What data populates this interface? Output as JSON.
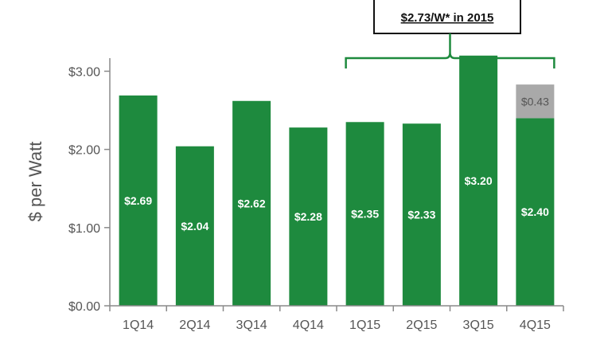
{
  "chart_data": {
    "type": "bar",
    "categories": [
      "1Q14",
      "2Q14",
      "3Q14",
      "4Q14",
      "1Q15",
      "2Q15",
      "3Q15",
      "4Q15"
    ],
    "series": [
      {
        "values": [
          2.69,
          2.04,
          2.62,
          2.28,
          2.35,
          2.33,
          3.2,
          2.4
        ],
        "color": "#1e8a3e"
      },
      {
        "values": [
          0,
          0,
          0,
          0,
          0,
          0,
          0,
          0.43
        ],
        "color": "#a9a9a9"
      }
    ],
    "data_labels": [
      "$2.69",
      "$2.04",
      "$2.62",
      "$2.28",
      "$2.35",
      "$2.33",
      "$3.20",
      "$2.40"
    ],
    "stack_labels": [
      "",
      "",
      "",
      "",
      "",
      "",
      "",
      "$0.43"
    ],
    "ylabel": "$ per Watt",
    "ylim": [
      0,
      3.3
    ],
    "yticks": [
      0,
      1,
      2,
      3
    ],
    "ytick_labels": [
      "$0.00",
      "$1.00",
      "$2.00",
      "$3.00"
    ],
    "grid": false,
    "annotation": {
      "text": "$2.73/W* in 2015",
      "bracket_categories": [
        "1Q15",
        "4Q15"
      ],
      "bracket_color": "#1e8a3e"
    }
  }
}
